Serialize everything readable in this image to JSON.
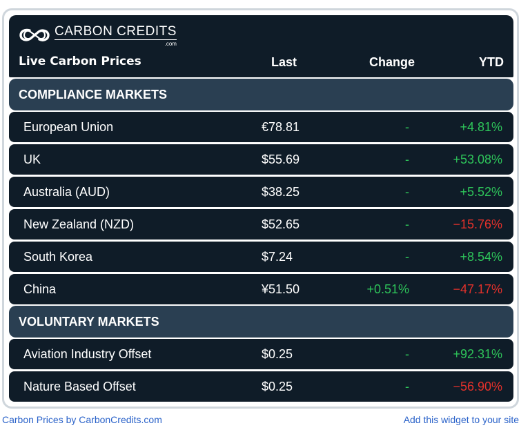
{
  "header": {
    "brand": "CARBON CREDITS",
    "brand_domain": ".com",
    "subtitle": "Live Carbon Prices",
    "columns": {
      "last": "Last",
      "change": "Change",
      "ytd": "YTD"
    }
  },
  "sections": [
    {
      "title": "COMPLIANCE MARKETS",
      "rows": [
        {
          "name": "European Union",
          "last": "€78.81",
          "change": "-",
          "ytd": "+4.81%"
        },
        {
          "name": "UK",
          "last": "$55.69",
          "change": "-",
          "ytd": "+53.08%"
        },
        {
          "name": "Australia (AUD)",
          "last": "$38.25",
          "change": "-",
          "ytd": "+5.52%"
        },
        {
          "name": "New Zealand (NZD)",
          "last": "$52.65",
          "change": "-",
          "ytd": "−15.76%"
        },
        {
          "name": "South Korea",
          "last": "$7.24",
          "change": "-",
          "ytd": "+8.54%"
        },
        {
          "name": "China",
          "last": "¥51.50",
          "change": "+0.51%",
          "ytd": "−47.17%"
        }
      ]
    },
    {
      "title": "VOLUNTARY MARKETS",
      "rows": [
        {
          "name": "Aviation Industry Offset",
          "last": "$0.25",
          "change": "-",
          "ytd": "+92.31%"
        },
        {
          "name": "Nature Based Offset",
          "last": "$0.25",
          "change": "-",
          "ytd": "−56.90%"
        }
      ]
    }
  ],
  "footer": {
    "left_link": "Carbon Prices by CarbonCredits.com",
    "right_link": "Add this widget to your site"
  },
  "colors": {
    "header_bg": "#0f1c28",
    "section_bg": "#2a3f52",
    "positive": "#2ec55a",
    "negative": "#e5312b",
    "link": "#2a62c9"
  },
  "icons": {
    "logo": "carbon-credits-logo-icon"
  }
}
